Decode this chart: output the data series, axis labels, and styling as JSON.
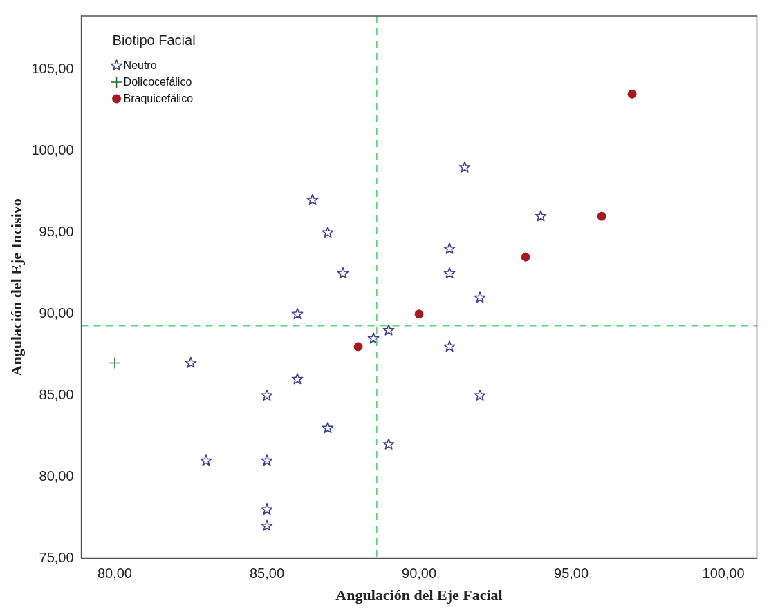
{
  "chart_data": {
    "type": "scatter",
    "xlabel": "Angulación del Eje Facial",
    "ylabel": "Angulación del Eje Incisivo",
    "legend_title": "Biotipo Facial",
    "legend": "top left",
    "grid": false,
    "xlim": [
      78.9,
      101.1
    ],
    "ylim": [
      75,
      108.3
    ],
    "xticks": [
      {
        "value": 80,
        "label": "80,00"
      },
      {
        "value": 85,
        "label": "85,00"
      },
      {
        "value": 90,
        "label": "90,00"
      },
      {
        "value": 95,
        "label": "95,00"
      },
      {
        "value": 100,
        "label": "100,00"
      }
    ],
    "yticks": [
      {
        "value": 75,
        "label": "75,00"
      },
      {
        "value": 80,
        "label": "80,00"
      },
      {
        "value": 85,
        "label": "85,00"
      },
      {
        "value": 90,
        "label": "90,00"
      },
      {
        "value": 95,
        "label": "95,00"
      },
      {
        "value": 100,
        "label": "100,00"
      },
      {
        "value": 105,
        "label": "105,00"
      }
    ],
    "series": [
      {
        "name": "Neutro",
        "color": "#3b3f8f",
        "marker": "star",
        "x": [
          86.5,
          87,
          87.5,
          86,
          82.5,
          86,
          85,
          87,
          83,
          85,
          85,
          85,
          88.5,
          89,
          89,
          91.5,
          91,
          91,
          91,
          92,
          92,
          94
        ],
        "values": [
          97,
          95,
          92.5,
          90,
          87,
          86,
          85,
          83,
          81,
          81,
          78,
          77,
          88.5,
          89,
          82,
          99,
          94,
          92.5,
          88,
          91,
          85,
          96
        ]
      },
      {
        "name": "Dolicocefálico",
        "color": "#1f6b2f",
        "marker": "cross",
        "x": [
          80
        ],
        "values": [
          87
        ]
      },
      {
        "name": "Braquicefálico",
        "color": "#a31a1f",
        "marker": "circle",
        "x": [
          88,
          90,
          93.5,
          96,
          97
        ],
        "values": [
          88,
          90,
          93.5,
          96,
          103.5
        ]
      }
    ],
    "ref_lines": [
      {
        "axis": "x",
        "value": 88.6,
        "color": "#5fd37a",
        "line_style": "dashed"
      },
      {
        "axis": "y",
        "value": 89.3,
        "color": "#5fd37a",
        "line_style": "dashed"
      }
    ]
  }
}
